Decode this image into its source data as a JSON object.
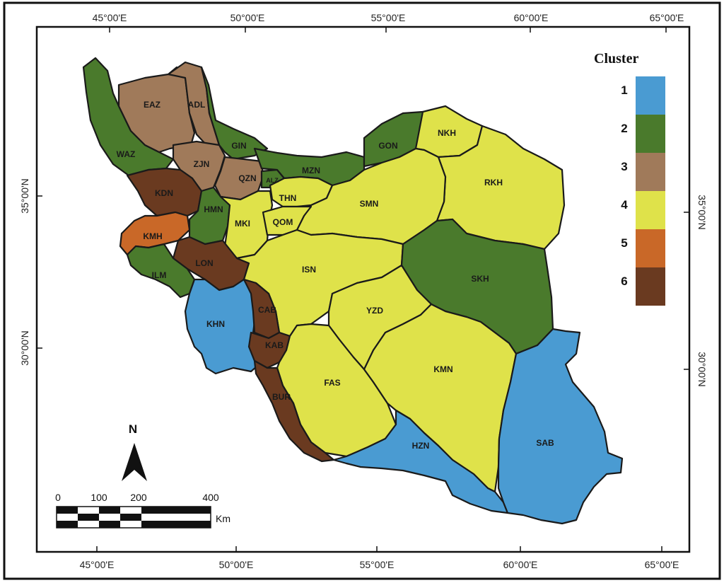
{
  "map": {
    "longitude_labels": [
      "45°00'E",
      "50°00'E",
      "55°00'E",
      "60°00'E",
      "65°00'E"
    ],
    "latitude_labels_left": [
      "35°00'N",
      "30°00'N"
    ],
    "latitude_labels_right": [
      "35°00'N",
      "30°00'N"
    ],
    "north_arrow": {
      "label": "N"
    },
    "scale_bar": {
      "ticks": [
        "0",
        "100",
        "200",
        "400"
      ],
      "unit": "Km"
    },
    "legend": {
      "title": "Cluster",
      "items": [
        {
          "label": "1",
          "color": "#4a9bd2"
        },
        {
          "label": "2",
          "color": "#4a7a2c"
        },
        {
          "label": "3",
          "color": "#a07a5a"
        },
        {
          "label": "4",
          "color": "#dfe24a"
        },
        {
          "label": "5",
          "color": "#c96828"
        },
        {
          "label": "6",
          "color": "#6a3a20"
        }
      ]
    },
    "provinces": [
      {
        "code": "WAZ",
        "cluster": 2
      },
      {
        "code": "EAZ",
        "cluster": 3
      },
      {
        "code": "ADL",
        "cluster": 3
      },
      {
        "code": "GIN",
        "cluster": 2
      },
      {
        "code": "ZJN",
        "cluster": 3
      },
      {
        "code": "QZN",
        "cluster": 3
      },
      {
        "code": "ALZ",
        "cluster": 2
      },
      {
        "code": "MZN",
        "cluster": 2
      },
      {
        "code": "GON",
        "cluster": 2
      },
      {
        "code": "NKH",
        "cluster": 4
      },
      {
        "code": "RKH",
        "cluster": 4
      },
      {
        "code": "THN",
        "cluster": 4
      },
      {
        "code": "SMN",
        "cluster": 4
      },
      {
        "code": "KDN",
        "cluster": 6
      },
      {
        "code": "HMN",
        "cluster": 2
      },
      {
        "code": "MKI",
        "cluster": 4
      },
      {
        "code": "QOM",
        "cluster": 4
      },
      {
        "code": "KMH",
        "cluster": 5
      },
      {
        "code": "LON",
        "cluster": 6
      },
      {
        "code": "ILM",
        "cluster": 2
      },
      {
        "code": "ISN",
        "cluster": 4
      },
      {
        "code": "SKH",
        "cluster": 2
      },
      {
        "code": "KHN",
        "cluster": 1
      },
      {
        "code": "CAB",
        "cluster": 6
      },
      {
        "code": "YZD",
        "cluster": 4
      },
      {
        "code": "KAB",
        "cluster": 6
      },
      {
        "code": "FAS",
        "cluster": 4
      },
      {
        "code": "KMN",
        "cluster": 4
      },
      {
        "code": "BUR",
        "cluster": 6
      },
      {
        "code": "HZN",
        "cluster": 1
      },
      {
        "code": "SAB",
        "cluster": 1
      }
    ]
  }
}
